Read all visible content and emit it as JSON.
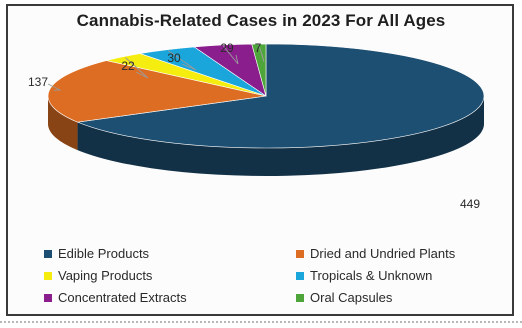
{
  "chart_data": {
    "type": "pie",
    "title": "Cannabis-Related  Cases in 2023 For All Ages",
    "categories": [
      "Edible Products",
      "Dried and Undried Plants",
      "Vaping Products",
      "Tropicals & Unknown",
      "Concentrated Extracts",
      "Oral Capsules"
    ],
    "values": [
      449,
      137,
      22,
      30,
      29,
      7
    ],
    "data_labels": [
      "449",
      "137",
      "22",
      "30",
      "29",
      "7"
    ],
    "colors": [
      "#1d4f72",
      "#dd6d22",
      "#f5ec10",
      "#1aa5db",
      "#8b1e8d",
      "#4ea63a"
    ],
    "legend_position": "bottom",
    "style": "3d"
  }
}
